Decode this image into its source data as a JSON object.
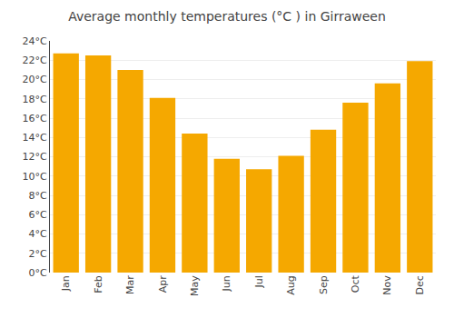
{
  "chart_data": {
    "type": "bar",
    "title": "Average monthly temperatures (°C ) in Girraween",
    "categories": [
      "Jan",
      "Feb",
      "Mar",
      "Apr",
      "May",
      "Jun",
      "Jul",
      "Aug",
      "Sep",
      "Oct",
      "Nov",
      "Dec"
    ],
    "values": [
      22.7,
      22.5,
      21.0,
      18.1,
      14.4,
      11.8,
      10.7,
      12.1,
      14.8,
      17.6,
      19.6,
      21.9
    ],
    "color": "#F5A800",
    "ylim": [
      0,
      24
    ],
    "yticks": [
      {
        "value": 0,
        "label": "0°C"
      },
      {
        "value": 2,
        "label": "2°C"
      },
      {
        "value": 4,
        "label": "4°C"
      },
      {
        "value": 6,
        "label": "6°C"
      },
      {
        "value": 8,
        "label": "8°C"
      },
      {
        "value": 10,
        "label": "10°C"
      },
      {
        "value": 12,
        "label": "12°C"
      },
      {
        "value": 14,
        "label": "14°C"
      },
      {
        "value": 16,
        "label": "16°C"
      },
      {
        "value": 18,
        "label": "18°C"
      },
      {
        "value": 20,
        "label": "20°C"
      },
      {
        "value": 22,
        "label": "22°C"
      },
      {
        "value": 24,
        "label": "24°C"
      }
    ],
    "grid": true
  }
}
